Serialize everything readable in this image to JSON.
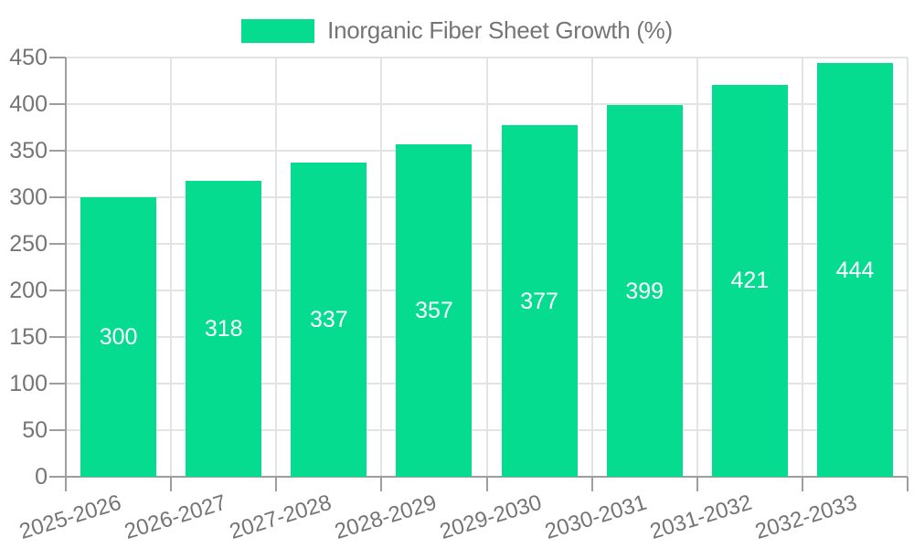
{
  "legend": {
    "label": "Inorganic Fiber Sheet Growth (%)"
  },
  "chart_data": {
    "type": "bar",
    "title": "",
    "categories": [
      "2025-2026",
      "2026-2027",
      "2027-2028",
      "2028-2029",
      "2029-2030",
      "2030-2031",
      "2031-2032",
      "2032-2033"
    ],
    "series": [
      {
        "name": "Inorganic Fiber Sheet Growth (%)",
        "values": [
          300,
          318,
          337,
          357,
          377,
          399,
          421,
          444
        ]
      }
    ],
    "xlabel": "",
    "ylabel": "",
    "ylim": [
      0,
      450
    ],
    "ytick_step": 50,
    "yticks": [
      0,
      50,
      100,
      150,
      200,
      250,
      300,
      350,
      400,
      450
    ],
    "grid": true,
    "legend_position": "top",
    "bar_value_labels": "inside-center"
  },
  "colors": {
    "bar": "#06DC8F",
    "bar_label": "#FFFFFF",
    "axis": "#9E9E9E",
    "grid": "#E3E3E3",
    "tick_label": "#757575",
    "legend_text": "#757575",
    "background": "#FFFFFF"
  }
}
